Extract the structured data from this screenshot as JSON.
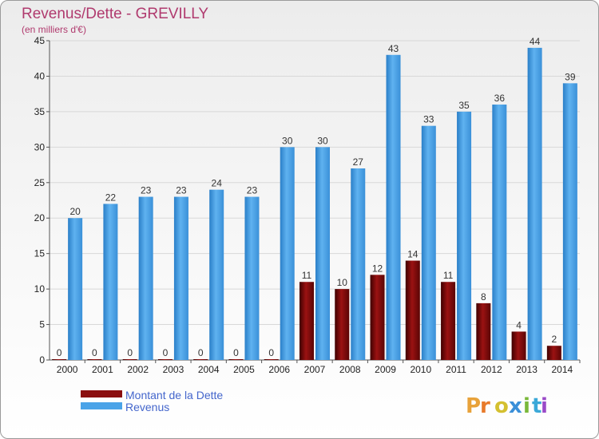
{
  "chart_data": {
    "type": "bar",
    "title": "Revenus/Dette - GREVILLY",
    "subtitle": "(en milliers d'€)",
    "categories": [
      "2000",
      "2001",
      "2002",
      "2003",
      "2004",
      "2005",
      "2006",
      "2007",
      "2008",
      "2009",
      "2010",
      "2011",
      "2012",
      "2013",
      "2014"
    ],
    "series": [
      {
        "name": "Montant de la Dette",
        "color": "#8b0f10",
        "values": [
          0,
          0,
          0,
          0,
          0,
          0,
          0,
          11,
          10,
          12,
          14,
          11,
          8,
          4,
          2
        ]
      },
      {
        "name": "Revenus",
        "color": "#4aa3e8",
        "values": [
          20,
          22,
          23,
          23,
          24,
          23,
          30,
          30,
          27,
          43,
          33,
          35,
          36,
          44,
          39
        ]
      }
    ],
    "ylim": [
      0,
      45
    ],
    "yticks": [
      0,
      5,
      10,
      15,
      20,
      25,
      30,
      35,
      40,
      45
    ],
    "grid": true,
    "legend_position": "bottom-left"
  },
  "logo": {
    "text": "Proxiti",
    "colors": [
      "#e8a23a",
      "#e87a2a",
      "#d4c030",
      "#3a8fd8",
      "#7ab83a",
      "#3aa8d8",
      "#9a4ac8"
    ]
  }
}
